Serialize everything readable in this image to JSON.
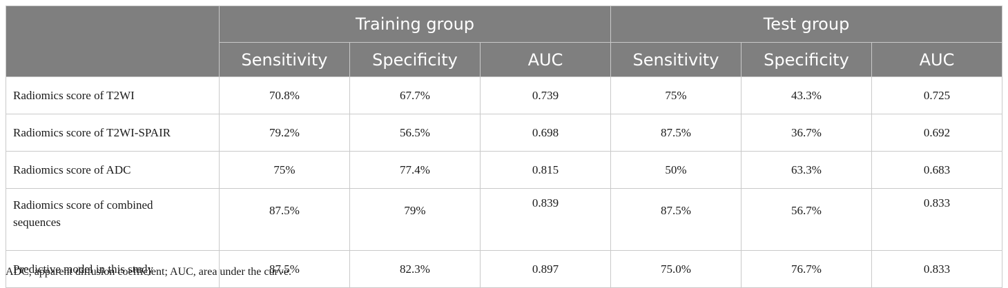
{
  "table": {
    "group_headers": [
      "",
      "Training group",
      "Test group"
    ],
    "sub_headers": [
      "Sensitivity",
      "Specificity",
      "AUC",
      "Sensitivity",
      "Specificity",
      "AUC"
    ],
    "rows": [
      {
        "label": "Radiomics score of T2WI",
        "values": [
          "70.8%",
          "67.7%",
          "0.739",
          "75%",
          "43.3%",
          "0.725"
        ]
      },
      {
        "label": "Radiomics score of T2WI-SPAIR",
        "values": [
          "79.2%",
          "56.5%",
          "0.698",
          "87.5%",
          "36.7%",
          "0.692"
        ]
      },
      {
        "label": "Radiomics score of ADC",
        "values": [
          "75%",
          "77.4%",
          "0.815",
          "50%",
          "63.3%",
          "0.683"
        ]
      },
      {
        "label": "Radiomics score of combined sequences",
        "values": [
          "87.5%",
          "79%",
          "0.839",
          "87.5%",
          "56.7%",
          "0.833"
        ]
      },
      {
        "label": "Predictive model in this study",
        "values": [
          "87.5%",
          "82.3%",
          "0.897",
          "75.0%",
          "76.7%",
          "0.833"
        ]
      }
    ]
  },
  "footnote": "ADC, apparent diffusion coefficient; AUC, area under the curve."
}
